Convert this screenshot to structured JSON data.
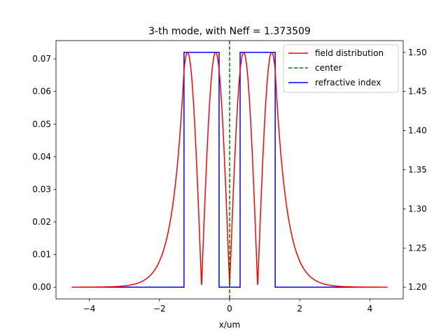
{
  "chart_data": {
    "type": "line",
    "title": "3-th mode, with Neff = 1.373509",
    "xlabel": "x/um",
    "ylabel_left": "",
    "ylabel_right": "",
    "xlim": [
      -4.95,
      4.95
    ],
    "ylim_left": [
      -0.0036,
      0.0756
    ],
    "ylim_right": [
      1.185,
      1.515
    ],
    "x_ticks": [
      -4,
      -2,
      0,
      2,
      4
    ],
    "x_tick_labels": [
      "−4",
      "−2",
      "0",
      "2",
      "4"
    ],
    "y_left_ticks": [
      0.0,
      0.01,
      0.02,
      0.03,
      0.04,
      0.05,
      0.06,
      0.07
    ],
    "y_left_tick_labels": [
      "0.00",
      "0.01",
      "0.02",
      "0.03",
      "0.04",
      "0.05",
      "0.06",
      "0.07"
    ],
    "y_right_ticks": [
      1.2,
      1.25,
      1.3,
      1.35,
      1.4,
      1.45,
      1.5
    ],
    "y_right_tick_labels": [
      "1.20",
      "1.25",
      "1.30",
      "1.35",
      "1.40",
      "1.45",
      "1.50"
    ],
    "grid": false,
    "legend_position": "top-right",
    "series": [
      {
        "name": "field distribution",
        "color": "#ff0000",
        "axis": "left",
        "style": "solid",
        "domain": [
          -4.5,
          4.5
        ],
        "peak": 0.072,
        "core_outer_edge": 1.3,
        "decay_length": 0.33,
        "zeros": [
          -0.8,
          0.0,
          0.8
        ]
      },
      {
        "name": "center",
        "color": "#008000",
        "axis": "left",
        "style": "dashed",
        "x": 0.0
      },
      {
        "name": "refractive index",
        "color": "#0000ff",
        "axis": "right",
        "style": "solid",
        "x": [
          -4.5,
          -1.3,
          -1.3,
          -0.3,
          -0.3,
          0.3,
          0.3,
          1.3,
          1.3,
          4.5
        ],
        "y": [
          1.2,
          1.2,
          1.5,
          1.5,
          1.2,
          1.2,
          1.5,
          1.5,
          1.2,
          1.2
        ]
      }
    ]
  }
}
